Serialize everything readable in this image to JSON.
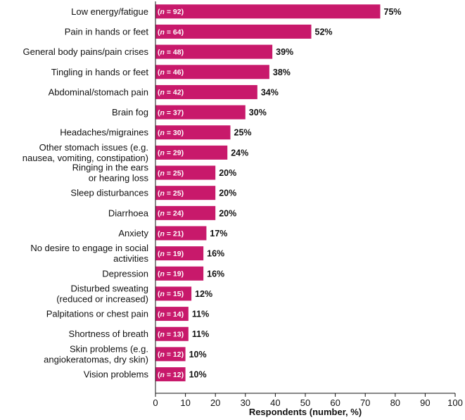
{
  "chart_data": {
    "type": "bar",
    "orientation": "horizontal",
    "xlabel": "Respondents (number, %)",
    "xlim": [
      0,
      100
    ],
    "x_ticks": [
      "0",
      "10",
      "20",
      "30",
      "40",
      "50",
      "60",
      "70",
      "80",
      "90",
      "100"
    ],
    "grid": false,
    "bar_color": "#c8196b",
    "categories": [
      [
        "Low energy/fatigue"
      ],
      [
        "Pain in hands or feet"
      ],
      [
        "General body pains/pain crises"
      ],
      [
        "Tingling in hands or feet"
      ],
      [
        "Abdominal/stomach pain"
      ],
      [
        "Brain fog"
      ],
      [
        "Headaches/migraines"
      ],
      [
        "Other stomach issues (e.g.",
        "nausea, vomiting, constipation)"
      ],
      [
        "Ringing in the ears",
        "or hearing loss"
      ],
      [
        "Sleep disturbances"
      ],
      [
        "Diarrhoea"
      ],
      [
        "Anxiety"
      ],
      [
        "No desire to engage in social",
        "activities"
      ],
      [
        "Depression"
      ],
      [
        "Disturbed sweating",
        "(reduced or increased)"
      ],
      [
        "Palpitations or chest pain"
      ],
      [
        "Shortness of breath"
      ],
      [
        "Skin problems (e.g.",
        "angiokeratomas, dry skin)"
      ],
      [
        "Vision problems"
      ]
    ],
    "n_prefix": "n",
    "n_values": [
      92,
      64,
      48,
      46,
      42,
      37,
      30,
      29,
      25,
      25,
      24,
      21,
      19,
      19,
      15,
      14,
      13,
      12,
      12
    ],
    "values": [
      75,
      52,
      39,
      38,
      34,
      30,
      25,
      24,
      20,
      20,
      20,
      17,
      16,
      16,
      12,
      11,
      11,
      10,
      10
    ]
  }
}
